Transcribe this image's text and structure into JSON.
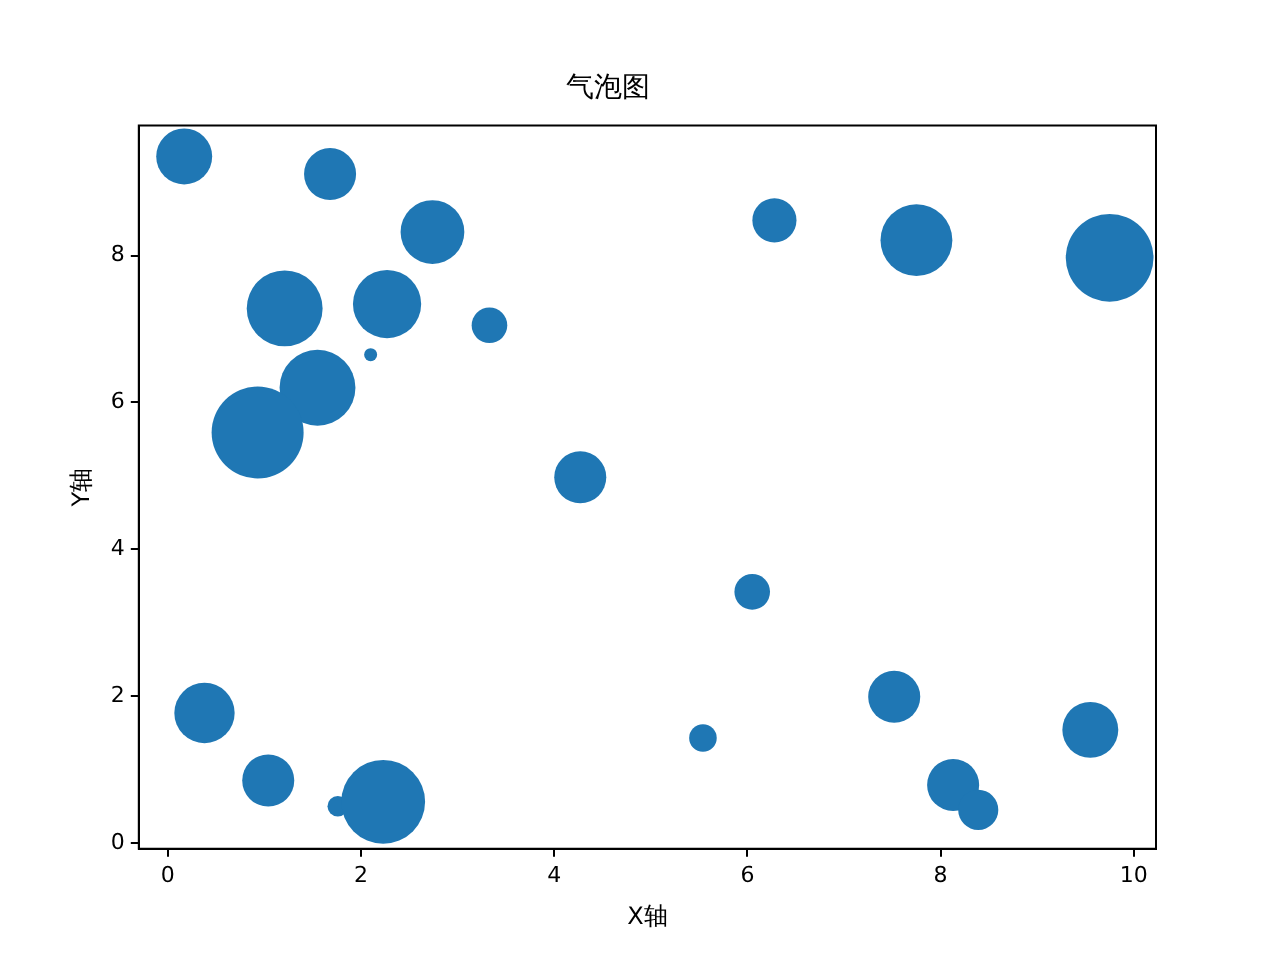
{
  "chart_data": {
    "type": "bubble",
    "title": "气泡图",
    "xlabel": "X轴",
    "ylabel": "Y轴",
    "x": [
      0.17,
      1.68,
      2.74,
      1.21,
      2.27,
      2.1,
      3.33,
      1.55,
      0.93,
      4.27,
      6.28,
      7.75,
      9.75,
      6.05,
      5.54,
      0.38,
      1.04,
      1.76,
      2.23,
      7.52,
      8.13,
      8.39,
      9.55
    ],
    "series": [
      {
        "color": "#1f77b4",
        "values": [
          9.35,
          9.11,
          8.32,
          7.28,
          7.34,
          6.65,
          7.05,
          6.2,
          5.59,
          4.98,
          8.48,
          8.21,
          7.97,
          3.42,
          1.43,
          1.77,
          0.85,
          0.5,
          0.56,
          1.99,
          0.79,
          0.45,
          1.54
        ],
        "sizes": [
          0.37,
          0.32,
          0.48,
          0.68,
          0.55,
          0.02,
          0.15,
          0.68,
          1,
          0.32,
          0.23,
          0.61,
          0.91,
          0.15,
          0.09,
          0.43,
          0.32,
          0.05,
          0.83,
          0.32,
          0.32,
          0.19,
          0.37
        ]
      }
    ],
    "xlim": [
      -0.3,
      10.23
    ],
    "ylim": [
      -0.08,
      9.77
    ],
    "xticks": [
      0,
      2,
      4,
      6,
      8,
      10
    ],
    "yticks": [
      0,
      2,
      4,
      6,
      8
    ],
    "grid": false,
    "legend": false
  }
}
